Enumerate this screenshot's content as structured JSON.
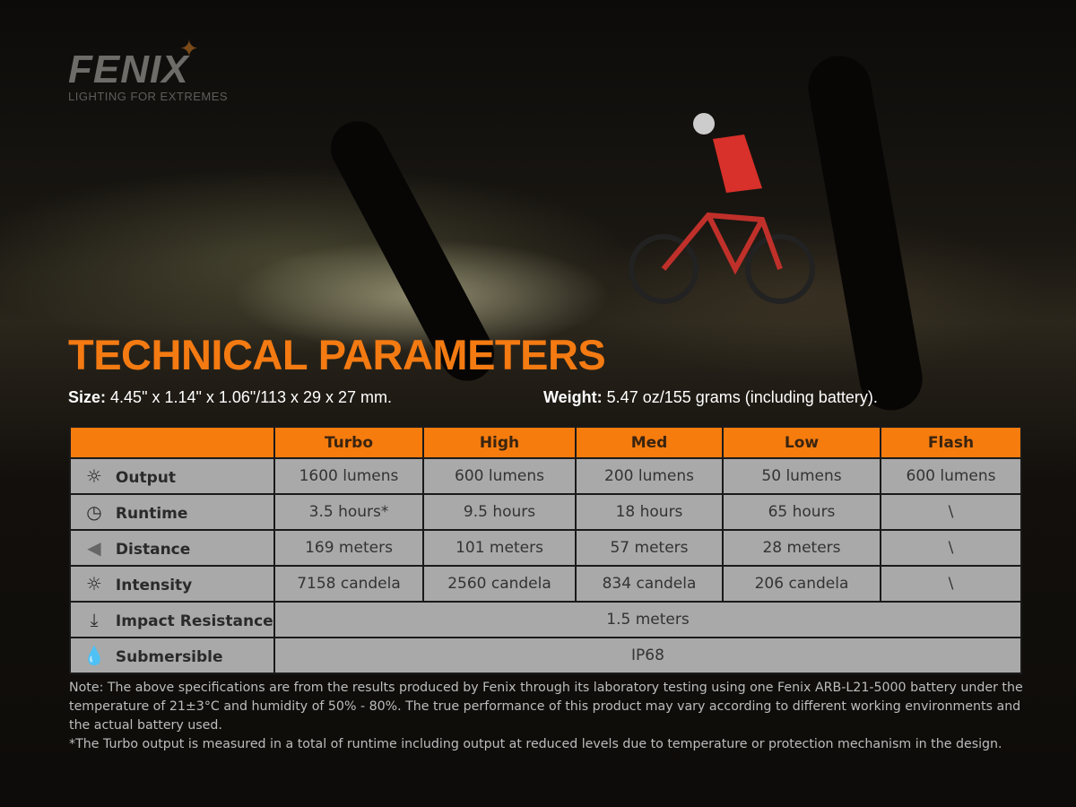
{
  "brand": {
    "name": "FENIX",
    "tagline": "LIGHTING FOR EXTREMES"
  },
  "title": "TECHNICAL PARAMETERS",
  "size": {
    "label": "Size:",
    "value": "4.45\" x 1.14\" x 1.06\"/113 x 29 x 27 mm."
  },
  "weight": {
    "label": "Weight:",
    "value": "5.47 oz/155 grams (including battery)."
  },
  "table": {
    "headers": [
      "",
      "Turbo",
      "High",
      "Med",
      "Low",
      "Flash"
    ],
    "rows": [
      {
        "icon": "sun-icon",
        "label": "Output",
        "values": [
          "1600 lumens",
          "600 lumens",
          "200 lumens",
          "50 lumens",
          "600 lumens"
        ]
      },
      {
        "icon": "clock-icon",
        "label": "Runtime",
        "values": [
          "3.5 hours*",
          "9.5 hours",
          "18 hours",
          "65 hours",
          "\\"
        ]
      },
      {
        "icon": "beam-icon",
        "label": "Distance",
        "values": [
          "169 meters",
          "101 meters",
          "57 meters",
          "28 meters",
          "\\"
        ]
      },
      {
        "icon": "intensity-icon",
        "label": "Intensity",
        "values": [
          "7158 candela",
          "2560 candela",
          "834 candela",
          "206 candela",
          "\\"
        ]
      },
      {
        "icon": "impact-icon",
        "label": "Impact Resistance",
        "value": "1.5 meters"
      },
      {
        "icon": "water-drop-icon",
        "label": "Submersible",
        "value": "IP68"
      }
    ]
  },
  "notes": [
    "Note: The above specifications are from the results produced by Fenix through its laboratory testing using one Fenix ARB-L21-5000 battery under the temperature of 21±3°C and humidity of 50% - 80%. The true performance of this product may vary according to different working environments and the actual battery used.",
    "*The Turbo output is measured in a total of runtime including output at reduced levels due to temperature or protection mechanism in the design."
  ],
  "colors": {
    "accent": "#f47a12",
    "table_header": "#f67c0e",
    "table_cell": "#a9a9a9"
  }
}
